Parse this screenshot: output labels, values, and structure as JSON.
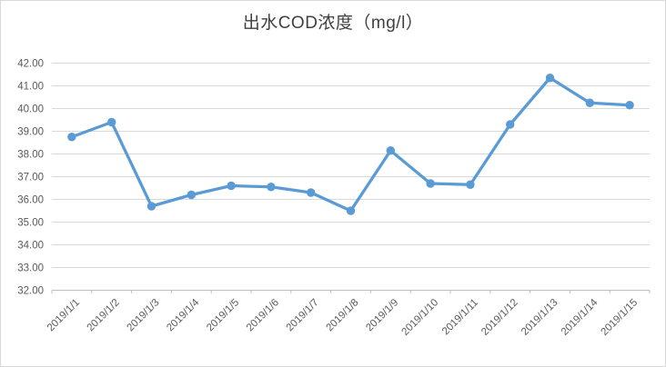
{
  "chart": {
    "title": "出水COD浓度（mg/l）"
  },
  "chart_data": {
    "type": "line",
    "title": "出水COD浓度（mg/l）",
    "categories": [
      "2019/1/1",
      "2019/1/2",
      "2019/1/3",
      "2019/1/4",
      "2019/1/5",
      "2019/1/6",
      "2019/1/7",
      "2019/1/8",
      "2019/1/9",
      "2019/1/10",
      "2019/1/11",
      "2019/1/12",
      "2019/1/13",
      "2019/1/14",
      "2019/1/15"
    ],
    "series": [
      {
        "name": "出水COD浓度",
        "values": [
          38.75,
          39.4,
          35.7,
          36.2,
          36.6,
          36.55,
          36.3,
          35.5,
          38.15,
          36.7,
          36.65,
          39.3,
          41.35,
          40.25,
          40.15
        ]
      }
    ],
    "xlabel": "",
    "ylabel": "",
    "ylim": [
      32,
      42
    ],
    "ytick_step": 1,
    "y_tick_labels": [
      "32.00",
      "33.00",
      "34.00",
      "35.00",
      "36.00",
      "37.00",
      "38.00",
      "39.00",
      "40.00",
      "41.00",
      "42.00"
    ],
    "grid": true,
    "legend_position": "none",
    "x_label_rotation_deg": -45,
    "marker": "circle"
  },
  "colors": {
    "series_line": "#5b9bd5",
    "marker_fill": "#5b9bd5",
    "gridline": "#d9d9d9",
    "axis_line": "#bfbfbf",
    "tick_label": "#595959",
    "title_text": "#404040",
    "frame_border": "#d9d9d9"
  }
}
